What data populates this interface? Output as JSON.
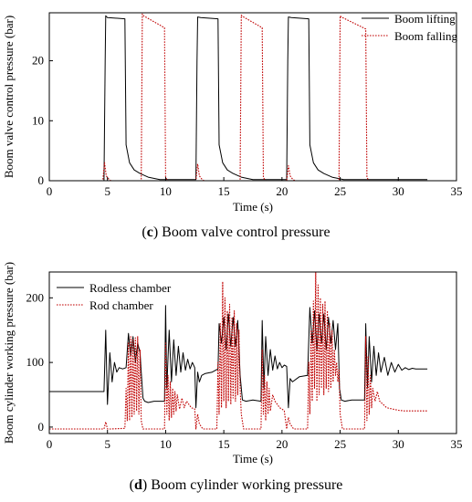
{
  "captions": [
    {
      "letter": "c",
      "text": " Boom valve control pressure"
    },
    {
      "letter": "d",
      "text": " Boom cylinder working pressure"
    }
  ],
  "chart_data": [
    {
      "type": "line",
      "xlabel": "Time (s)",
      "ylabel": "Boom valve control pressure (bar)",
      "xlim": [
        0,
        35
      ],
      "ylim": [
        0,
        28
      ],
      "xticks": [
        0,
        5,
        10,
        15,
        20,
        25,
        30,
        35
      ],
      "yticks": [
        0,
        10,
        20
      ],
      "legend_position": "top-right",
      "series": [
        {
          "name": "Boom lifting",
          "color": "#000000",
          "style": "solid",
          "x": [
            0,
            4.7,
            4.8,
            4.85,
            5.0,
            6.5,
            6.6,
            6.9,
            7.3,
            7.8,
            8.5,
            9.5,
            12.6,
            12.7,
            12.75,
            13.0,
            14.5,
            14.6,
            14.9,
            15.3,
            15.8,
            16.5,
            17.5,
            20.4,
            20.5,
            20.55,
            20.8,
            22.3,
            22.4,
            22.7,
            23.1,
            23.6,
            24.3,
            25.3,
            32.5
          ],
          "y": [
            0,
            0,
            20,
            27.5,
            27.2,
            27,
            6,
            3,
            1.8,
            1.2,
            0.6,
            0.2,
            0.2,
            20,
            27.3,
            27.2,
            27,
            6,
            3,
            1.8,
            1.2,
            0.6,
            0.2,
            0.2,
            20,
            27.3,
            27.2,
            27,
            6,
            3,
            1.8,
            1.2,
            0.6,
            0.2,
            0.2
          ]
        },
        {
          "name": "Boom falling",
          "color": "#c00000",
          "style": "dotted",
          "x": [
            0,
            4.6,
            4.75,
            4.9,
            5.1,
            5.3,
            7.9,
            8.0,
            8.1,
            9.9,
            10.0,
            10.2,
            12.6,
            12.75,
            12.9,
            13.1,
            13.3,
            16.4,
            16.5,
            16.6,
            18.3,
            18.4,
            18.6,
            20.4,
            20.55,
            20.7,
            20.9,
            21.1,
            24.9,
            25.0,
            25.1,
            27.2,
            27.3,
            27.5,
            32.5
          ],
          "y": [
            0,
            0,
            3,
            0.8,
            0.3,
            0,
            0,
            27.8,
            27.5,
            25.5,
            0.5,
            0,
            0,
            2.8,
            0.8,
            0.3,
            0,
            0,
            27.6,
            27.4,
            25.5,
            0.5,
            0,
            0,
            2.5,
            0.8,
            0.3,
            0,
            0,
            27.5,
            27.3,
            25.3,
            0.5,
            0,
            0
          ]
        }
      ]
    },
    {
      "type": "line",
      "xlabel": "Time (s)",
      "ylabel": "Boom cylinder working pressure (bar)",
      "xlim": [
        0,
        35
      ],
      "ylim": [
        -10,
        240
      ],
      "xticks": [
        0,
        5,
        10,
        15,
        20,
        25,
        30,
        35
      ],
      "yticks": [
        0,
        100,
        200
      ],
      "legend_position": "top-left",
      "series": [
        {
          "name": "Rodless chamber",
          "color": "#000000",
          "style": "solid",
          "x": [
            0,
            4.7,
            4.85,
            5.0,
            5.2,
            5.4,
            5.6,
            5.8,
            6.0,
            6.3,
            6.6,
            6.8,
            7.0,
            7.2,
            7.4,
            7.6,
            7.8,
            7.9,
            8.05,
            8.2,
            8.5,
            9.0,
            9.9,
            10.0,
            10.1,
            10.3,
            10.5,
            10.7,
            10.9,
            11.1,
            11.3,
            11.5,
            11.7,
            11.9,
            12.1,
            12.3,
            12.5,
            12.6,
            12.75,
            12.9,
            13.1,
            13.4,
            14.0,
            14.5,
            14.6,
            14.8,
            15.0,
            15.2,
            15.4,
            15.6,
            15.8,
            16.0,
            16.2,
            16.4,
            16.6,
            16.9,
            17.5,
            18.2,
            18.3,
            18.45,
            18.6,
            18.8,
            19.0,
            19.2,
            19.4,
            19.6,
            19.8,
            20.0,
            20.2,
            20.4,
            20.55,
            20.7,
            20.9,
            21.5,
            22.2,
            22.4,
            22.6,
            22.8,
            23.0,
            23.2,
            23.4,
            23.6,
            23.8,
            24.0,
            24.2,
            24.4,
            24.6,
            24.8,
            24.95,
            25.1,
            25.4,
            26.0,
            27.1,
            27.2,
            27.35,
            27.5,
            27.7,
            27.9,
            28.1,
            28.3,
            28.5,
            28.8,
            29.1,
            29.4,
            29.7,
            30.0,
            30.3,
            30.6,
            30.9,
            31.2,
            31.5,
            32.5
          ],
          "y": [
            55,
            55,
            150,
            35,
            115,
            70,
            100,
            85,
            92,
            90,
            92,
            145,
            110,
            140,
            100,
            130,
            115,
            85,
            45,
            40,
            38,
            40,
            40,
            188,
            60,
            150,
            70,
            135,
            80,
            125,
            85,
            115,
            88,
            105,
            90,
            100,
            92,
            30,
            85,
            70,
            80,
            83,
            85,
            90,
            160,
            130,
            170,
            120,
            175,
            125,
            170,
            125,
            165,
            80,
            42,
            40,
            42,
            40,
            165,
            60,
            140,
            80,
            120,
            88,
            110,
            90,
            100,
            92,
            96,
            94,
            30,
            75,
            70,
            78,
            80,
            185,
            130,
            180,
            120,
            175,
            130,
            175,
            120,
            170,
            130,
            165,
            120,
            160,
            60,
            42,
            40,
            42,
            42,
            160,
            60,
            140,
            70,
            125,
            80,
            115,
            85,
            108,
            80,
            100,
            85,
            97,
            88,
            92,
            89,
            91,
            90,
            90
          ]
        },
        {
          "name": "Rod chamber",
          "color": "#c00000",
          "style": "dotted",
          "x": [
            0,
            4.7,
            4.85,
            5.0,
            5.3,
            6.5,
            6.6,
            6.7,
            6.8,
            6.9,
            7.0,
            7.1,
            7.2,
            7.3,
            7.4,
            7.5,
            7.6,
            7.7,
            7.8,
            7.9,
            8.05,
            8.3,
            9.9,
            10.0,
            10.1,
            10.2,
            10.3,
            10.4,
            10.5,
            10.6,
            10.7,
            10.8,
            10.9,
            11.0,
            11.2,
            11.4,
            11.6,
            11.8,
            12.0,
            12.2,
            12.5,
            12.6,
            12.75,
            12.9,
            13.2,
            14.4,
            14.5,
            14.6,
            14.7,
            14.8,
            14.9,
            15.0,
            15.1,
            15.2,
            15.3,
            15.4,
            15.5,
            15.6,
            15.7,
            15.8,
            15.9,
            16.0,
            16.1,
            16.2,
            16.3,
            16.4,
            16.5,
            16.7,
            18.2,
            18.3,
            18.4,
            18.5,
            18.6,
            18.7,
            18.8,
            18.9,
            19.0,
            19.2,
            19.4,
            19.6,
            19.8,
            20.0,
            20.2,
            20.4,
            20.55,
            20.7,
            21.0,
            22.2,
            22.3,
            22.4,
            22.5,
            22.6,
            22.7,
            22.8,
            22.9,
            23.0,
            23.1,
            23.2,
            23.3,
            23.4,
            23.5,
            23.6,
            23.7,
            23.8,
            23.9,
            24.0,
            24.1,
            24.2,
            24.3,
            24.4,
            24.5,
            24.6,
            24.7,
            24.8,
            24.9,
            25.0,
            25.2,
            27.1,
            27.2,
            27.3,
            27.4,
            27.5,
            27.6,
            27.7,
            27.8,
            28.0,
            28.2,
            28.4,
            28.7,
            29.0,
            29.5,
            30.0,
            30.5,
            31.0,
            32.5
          ],
          "y": [
            -3,
            -3,
            8,
            -3,
            -3,
            -2,
            60,
            10,
            130,
            10,
            140,
            15,
            135,
            20,
            138,
            25,
            140,
            20,
            120,
            10,
            -3,
            -3,
            -3,
            130,
            20,
            80,
            10,
            70,
            15,
            60,
            20,
            55,
            25,
            50,
            28,
            45,
            30,
            40,
            35,
            30,
            28,
            -3,
            20,
            5,
            -3,
            -3,
            100,
            20,
            160,
            30,
            225,
            40,
            200,
            30,
            180,
            40,
            190,
            35,
            170,
            45,
            180,
            40,
            160,
            50,
            150,
            60,
            20,
            -3,
            -3,
            120,
            20,
            80,
            10,
            70,
            20,
            60,
            25,
            50,
            40,
            35,
            30,
            28,
            25,
            -3,
            15,
            5,
            -3,
            -3,
            100,
            20,
            150,
            40,
            195,
            60,
            240,
            40,
            220,
            50,
            200,
            60,
            190,
            50,
            195,
            60,
            180,
            55,
            160,
            60,
            150,
            70,
            120,
            80,
            100,
            70,
            90,
            20,
            -3,
            -3,
            140,
            10,
            110,
            20,
            80,
            30,
            60,
            40,
            55,
            40,
            35,
            30,
            28,
            26,
            25,
            25,
            25
          ]
        }
      ]
    }
  ]
}
